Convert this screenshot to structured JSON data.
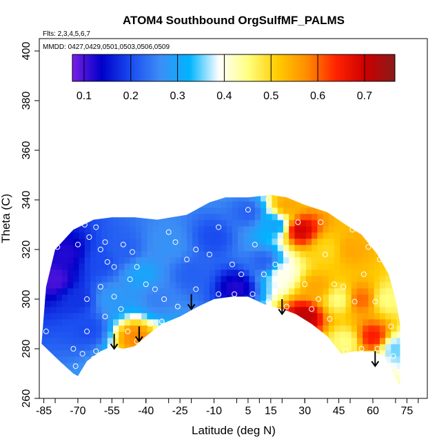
{
  "chart_data": {
    "type": "heatmap",
    "title": "ATOM4 Southbound OrgSulfMF_PALMS",
    "annotations": [
      "Flts: 2,3,4,5,6,7",
      "MMDD: 0427,0429,0501,0503,0506,0509"
    ],
    "xlabel": "Latitude (deg N)",
    "ylabel": "Theta (C)",
    "xlim": [
      -87,
      84
    ],
    "ylim": [
      260,
      405
    ],
    "x_ticks": [
      -85,
      -70,
      -55,
      -40,
      -25,
      -10,
      5,
      15,
      30,
      45,
      60,
      75
    ],
    "x_tick_labels": [
      "-85",
      "-70",
      "-55",
      "-40",
      "-25",
      "-10",
      "5",
      "15",
      "30",
      "45",
      "60",
      "75"
    ],
    "y_ticks": [
      260,
      280,
      300,
      320,
      340,
      360,
      380,
      400
    ],
    "y_tick_labels": [
      "260",
      "280",
      "300",
      "320",
      "340",
      "360",
      "380",
      "400"
    ],
    "colorbar": {
      "range": [
        0.075,
        0.765
      ],
      "ticks": [
        0.1,
        0.2,
        0.3,
        0.4,
        0.5,
        0.6,
        0.7
      ],
      "tick_labels": [
        "0.1",
        "0.2",
        "0.3",
        "0.4",
        "0.5",
        "0.6",
        "0.7"
      ],
      "colors": [
        "#7a1fe8",
        "#0000c8",
        "#1a4cf0",
        "#3d8ef5",
        "#00b4ff",
        "#ffffff",
        "#ffff80",
        "#ffcc00",
        "#ff8c00",
        "#ff2200",
        "#cc0000",
        "#8b1a1a"
      ]
    },
    "boundary": {
      "top": [
        [
          -86,
          282
        ],
        [
          -84,
          305
        ],
        [
          -80,
          320
        ],
        [
          -72,
          328
        ],
        [
          -63,
          332
        ],
        [
          -55,
          333
        ],
        [
          -45,
          333
        ],
        [
          -35,
          332
        ],
        [
          -22,
          334
        ],
        [
          -12,
          339
        ],
        [
          -5,
          341
        ],
        [
          5,
          341
        ],
        [
          15,
          342
        ],
        [
          22,
          341
        ],
        [
          30,
          338
        ],
        [
          40,
          335
        ],
        [
          48,
          330
        ],
        [
          55,
          326
        ],
        [
          62,
          318
        ],
        [
          67,
          310
        ],
        [
          70,
          300
        ],
        [
          72,
          290
        ],
        [
          72,
          265
        ]
      ],
      "bottom": [
        [
          72,
          265
        ],
        [
          69,
          270
        ],
        [
          65,
          277
        ],
        [
          60,
          279
        ],
        [
          52,
          279
        ],
        [
          46,
          278
        ],
        [
          40,
          285
        ],
        [
          33,
          290
        ],
        [
          26,
          294
        ],
        [
          20,
          296
        ],
        [
          12,
          298
        ],
        [
          5,
          301
        ],
        [
          -2,
          301
        ],
        [
          -10,
          300
        ],
        [
          -17,
          297
        ],
        [
          -25,
          293
        ],
        [
          -33,
          290
        ],
        [
          -40,
          285
        ],
        [
          -45,
          281
        ],
        [
          -50,
          280
        ],
        [
          -55,
          281
        ],
        [
          -60,
          279
        ],
        [
          -66,
          275
        ],
        [
          -70,
          269
        ],
        [
          -72,
          270
        ],
        [
          -78,
          275
        ],
        [
          -86,
          282
        ]
      ]
    },
    "field_anchors": [
      {
        "lat": -80,
        "theta": 308,
        "value": 0.1
      },
      {
        "lat": -75,
        "theta": 318,
        "value": 0.12
      },
      {
        "lat": -70,
        "theta": 300,
        "value": 0.18
      },
      {
        "lat": -65,
        "theta": 288,
        "value": 0.2
      },
      {
        "lat": -60,
        "theta": 315,
        "value": 0.2
      },
      {
        "lat": -55,
        "theta": 300,
        "value": 0.28
      },
      {
        "lat": -50,
        "theta": 320,
        "value": 0.22
      },
      {
        "lat": -45,
        "theta": 285,
        "value": 0.58
      },
      {
        "lat": -42,
        "theta": 310,
        "value": 0.3
      },
      {
        "lat": -35,
        "theta": 300,
        "value": 0.25
      },
      {
        "lat": -30,
        "theta": 322,
        "value": 0.27
      },
      {
        "lat": -20,
        "theta": 310,
        "value": 0.22
      },
      {
        "lat": -10,
        "theta": 325,
        "value": 0.2
      },
      {
        "lat": 0,
        "theta": 305,
        "value": 0.12
      },
      {
        "lat": 5,
        "theta": 335,
        "value": 0.22
      },
      {
        "lat": 12,
        "theta": 315,
        "value": 0.22
      },
      {
        "lat": 17,
        "theta": 330,
        "value": 0.3
      },
      {
        "lat": 20,
        "theta": 310,
        "value": 0.4
      },
      {
        "lat": 22,
        "theta": 338,
        "value": 0.55
      },
      {
        "lat": 28,
        "theta": 328,
        "value": 0.7
      },
      {
        "lat": 30,
        "theta": 293,
        "value": 0.72
      },
      {
        "lat": 35,
        "theta": 305,
        "value": 0.55
      },
      {
        "lat": 40,
        "theta": 320,
        "value": 0.5
      },
      {
        "lat": 45,
        "theta": 300,
        "value": 0.45
      },
      {
        "lat": 50,
        "theta": 320,
        "value": 0.55
      },
      {
        "lat": 55,
        "theta": 300,
        "value": 0.6
      },
      {
        "lat": 60,
        "theta": 285,
        "value": 0.65
      },
      {
        "lat": 66,
        "theta": 300,
        "value": 0.45
      },
      {
        "lat": 70,
        "theta": 280,
        "value": 0.35
      },
      {
        "lat": 48,
        "theta": 283,
        "value": 0.45
      }
    ],
    "sample_points": [
      [
        -79,
        321
      ],
      [
        -70,
        322
      ],
      [
        -67,
        330
      ],
      [
        -65,
        325
      ],
      [
        -62,
        329
      ],
      [
        -60,
        320
      ],
      [
        -58,
        323
      ],
      [
        -57,
        315
      ],
      [
        -54,
        313
      ],
      [
        -50,
        322
      ],
      [
        -46,
        319
      ],
      [
        -44,
        313
      ],
      [
        -47,
        308
      ],
      [
        -40,
        306
      ],
      [
        -36,
        304
      ],
      [
        -32,
        300
      ],
      [
        -30,
        327
      ],
      [
        -27,
        323
      ],
      [
        -22,
        316
      ],
      [
        -18,
        320
      ],
      [
        -12,
        318
      ],
      [
        -8,
        329
      ],
      [
        -2,
        314
      ],
      [
        2,
        310
      ],
      [
        5,
        336
      ],
      [
        8,
        322
      ],
      [
        12,
        310
      ],
      [
        14,
        340
      ],
      [
        17,
        314
      ],
      [
        21,
        303
      ],
      [
        24,
        342
      ],
      [
        27,
        331
      ],
      [
        30,
        306
      ],
      [
        33,
        296
      ],
      [
        37,
        331
      ],
      [
        39,
        318
      ],
      [
        43,
        306
      ],
      [
        47,
        305
      ],
      [
        51,
        328
      ],
      [
        52,
        299
      ],
      [
        56,
        310
      ],
      [
        58,
        321
      ],
      [
        61,
        299
      ],
      [
        63,
        316
      ],
      [
        68,
        289
      ],
      [
        69,
        277
      ],
      [
        -72,
        280
      ],
      [
        -66,
        287
      ],
      [
        -62,
        279
      ],
      [
        -58,
        293
      ],
      [
        -54,
        301
      ],
      [
        -51,
        296
      ],
      [
        -48,
        287
      ],
      [
        -44,
        283
      ],
      [
        -38,
        290
      ],
      [
        -33,
        291
      ],
      [
        -26,
        297
      ],
      [
        -18,
        304
      ],
      [
        -8,
        302
      ],
      [
        -1,
        302
      ],
      [
        7,
        302
      ],
      [
        14,
        299
      ],
      [
        22,
        297
      ],
      [
        -84,
        287
      ],
      [
        -68,
        278
      ],
      [
        -63,
        276
      ],
      [
        -71,
        273
      ],
      [
        -66,
        300
      ],
      [
        -60,
        305
      ],
      [
        48,
        279
      ],
      [
        55,
        280
      ],
      [
        62,
        280
      ],
      [
        41,
        292
      ],
      [
        36,
        300
      ]
    ],
    "arrows": [
      {
        "lat": -54,
        "theta_top": 286,
        "theta_bottom": 280
      },
      {
        "lat": -43,
        "theta_top": 289,
        "theta_bottom": 283
      },
      {
        "lat": -20,
        "theta_top": 302,
        "theta_bottom": 296
      },
      {
        "lat": 20,
        "theta_top": 300,
        "theta_bottom": 294
      },
      {
        "lat": 61,
        "theta_top": 279,
        "theta_bottom": 273
      }
    ]
  }
}
